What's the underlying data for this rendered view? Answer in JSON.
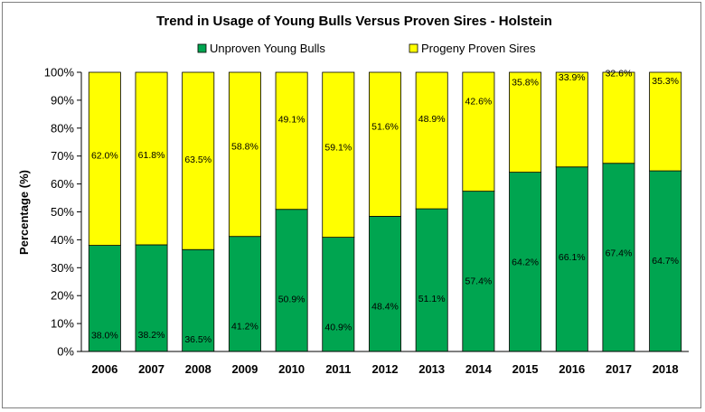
{
  "chart_data": {
    "type": "bar",
    "stacked": true,
    "title": "Trend in Usage of Young Bulls Versus Proven Sires - Holstein",
    "xlabel": "",
    "ylabel": "Percentage (%)",
    "ylim": [
      0,
      100
    ],
    "yticks": [
      "0%",
      "10%",
      "20%",
      "30%",
      "40%",
      "50%",
      "60%",
      "70%",
      "80%",
      "90%",
      "100%"
    ],
    "legend_position": "top",
    "grid": false,
    "categories": [
      "2006",
      "2007",
      "2008",
      "2009",
      "2010",
      "2011",
      "2012",
      "2013",
      "2014",
      "2015",
      "2016",
      "2017",
      "2018"
    ],
    "series": [
      {
        "name": "Unproven Young Bulls",
        "color": "#00a550",
        "values": [
          38.0,
          38.2,
          36.5,
          41.2,
          50.9,
          40.9,
          48.4,
          51.1,
          57.4,
          64.2,
          66.1,
          67.4,
          64.7
        ],
        "labels": [
          "38.0%",
          "38.2%",
          "36.5%",
          "41.2%",
          "50.9%",
          "40.9%",
          "48.4%",
          "51.1%",
          "57.4%",
          "64.2%",
          "66.1%",
          "67.4%",
          "64.7%"
        ]
      },
      {
        "name": "Progeny Proven Sires",
        "color": "#ffff00",
        "values": [
          62.0,
          61.8,
          63.5,
          58.8,
          49.1,
          59.1,
          51.6,
          48.9,
          42.6,
          35.8,
          33.9,
          32.6,
          35.3
        ],
        "labels": [
          "62.0%",
          "61.8%",
          "63.5%",
          "58.8%",
          "49.1%",
          "59.1%",
          "51.6%",
          "48.9%",
          "42.6%",
          "35.8%",
          "33.9%",
          "32.6%",
          "35.3%"
        ]
      }
    ]
  }
}
